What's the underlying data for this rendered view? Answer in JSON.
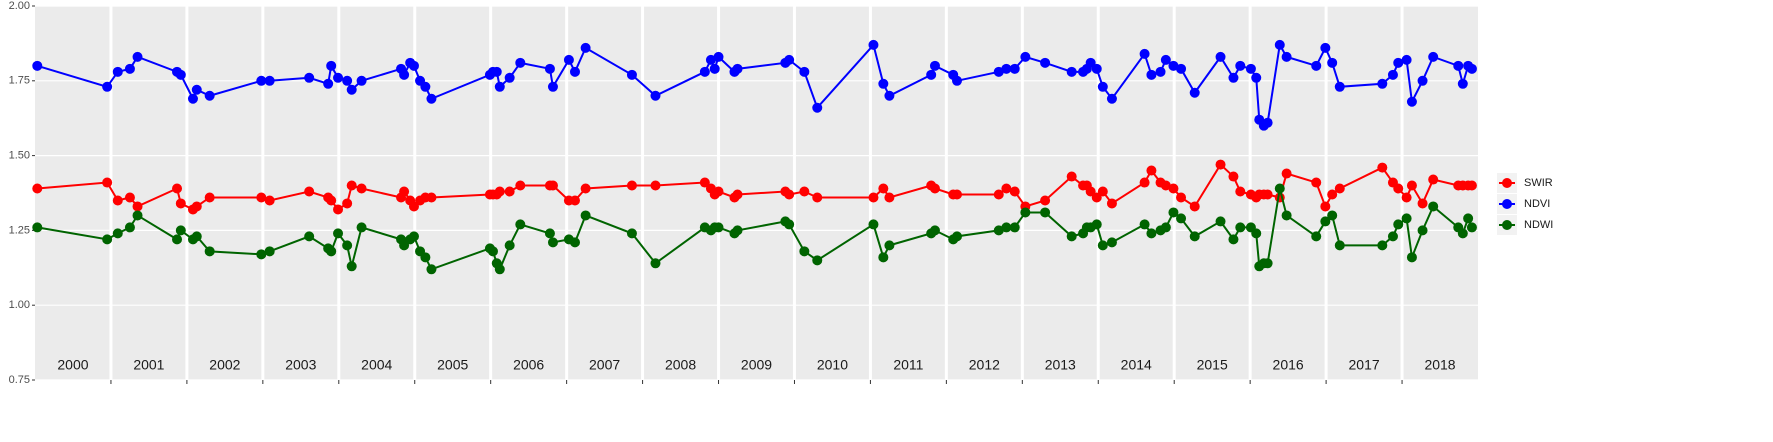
{
  "chart_data": {
    "type": "line",
    "x": [
      2000.03,
      2000.95,
      2001.09,
      2001.25,
      2001.35,
      2001.87,
      2001.92,
      2002.08,
      2002.13,
      2002.3,
      2002.98,
      2003.09,
      2003.61,
      2003.86,
      2003.9,
      2003.99,
      2004.11,
      2004.17,
      2004.3,
      2004.82,
      2004.86,
      2004.94,
      2004.99,
      2005.07,
      2005.14,
      2005.22,
      2005.99,
      2006.03,
      2006.08,
      2006.12,
      2006.25,
      2006.39,
      2006.78,
      2006.82,
      2007.03,
      2007.11,
      2007.25,
      2007.86,
      2008.17,
      2008.82,
      2008.9,
      2008.95,
      2009.0,
      2009.21,
      2009.25,
      2009.88,
      2009.93,
      2010.13,
      2010.3,
      2011.04,
      2011.17,
      2011.25,
      2011.8,
      2011.85,
      2012.09,
      2012.14,
      2012.69,
      2012.79,
      2012.9,
      2013.04,
      2013.3,
      2013.65,
      2013.8,
      2013.85,
      2013.9,
      2013.98,
      2014.06,
      2014.18,
      2014.61,
      2014.7,
      2014.82,
      2014.89,
      2014.99,
      2015.09,
      2015.27,
      2015.61,
      2015.78,
      2015.87,
      2016.01,
      2016.08,
      2016.12,
      2016.18,
      2016.23,
      2016.39,
      2016.48,
      2016.87,
      2016.99,
      2017.08,
      2017.18,
      2017.74,
      2017.88,
      2017.95,
      2018.06,
      2018.13,
      2018.27,
      2018.41,
      2018.74,
      2018.8,
      2018.87,
      2018.92
    ],
    "series": [
      {
        "name": "SWIR",
        "color": "#ff0000",
        "values": [
          1.39,
          1.41,
          1.35,
          1.36,
          1.33,
          1.39,
          1.34,
          1.32,
          1.33,
          1.36,
          1.36,
          1.35,
          1.38,
          1.36,
          1.35,
          1.32,
          1.34,
          1.4,
          1.39,
          1.36,
          1.38,
          1.35,
          1.33,
          1.35,
          1.36,
          1.36,
          1.37,
          1.37,
          1.37,
          1.38,
          1.38,
          1.4,
          1.4,
          1.4,
          1.35,
          1.35,
          1.39,
          1.4,
          1.4,
          1.41,
          1.39,
          1.37,
          1.38,
          1.36,
          1.37,
          1.38,
          1.37,
          1.38,
          1.36,
          1.36,
          1.39,
          1.36,
          1.4,
          1.39,
          1.37,
          1.37,
          1.37,
          1.39,
          1.38,
          1.33,
          1.35,
          1.43,
          1.4,
          1.4,
          1.38,
          1.36,
          1.38,
          1.34,
          1.41,
          1.45,
          1.41,
          1.4,
          1.39,
          1.36,
          1.33,
          1.47,
          1.43,
          1.38,
          1.37,
          1.36,
          1.37,
          1.37,
          1.37,
          1.36,
          1.44,
          1.41,
          1.33,
          1.37,
          1.39,
          1.46,
          1.41,
          1.39,
          1.36,
          1.4,
          1.34,
          1.42,
          1.4,
          1.4,
          1.4,
          1.4
        ]
      },
      {
        "name": "NDVI",
        "color": "#0000ff",
        "values": [
          1.8,
          1.73,
          1.78,
          1.79,
          1.83,
          1.78,
          1.77,
          1.69,
          1.72,
          1.7,
          1.75,
          1.75,
          1.76,
          1.74,
          1.8,
          1.76,
          1.75,
          1.72,
          1.75,
          1.79,
          1.77,
          1.81,
          1.8,
          1.75,
          1.73,
          1.69,
          1.77,
          1.78,
          1.78,
          1.73,
          1.76,
          1.81,
          1.79,
          1.73,
          1.82,
          1.78,
          1.86,
          1.77,
          1.7,
          1.78,
          1.82,
          1.79,
          1.83,
          1.78,
          1.79,
          1.81,
          1.82,
          1.78,
          1.66,
          1.87,
          1.74,
          1.7,
          1.77,
          1.8,
          1.77,
          1.75,
          1.78,
          1.79,
          1.79,
          1.83,
          1.81,
          1.78,
          1.78,
          1.79,
          1.81,
          1.79,
          1.73,
          1.69,
          1.84,
          1.77,
          1.78,
          1.82,
          1.8,
          1.79,
          1.71,
          1.83,
          1.76,
          1.8,
          1.79,
          1.76,
          1.62,
          1.6,
          1.61,
          1.87,
          1.83,
          1.8,
          1.86,
          1.81,
          1.73,
          1.74,
          1.77,
          1.81,
          1.82,
          1.68,
          1.75,
          1.83,
          1.8,
          1.74,
          1.8,
          1.79
        ]
      },
      {
        "name": "NDWI",
        "color": "#006400",
        "values": [
          1.26,
          1.22,
          1.24,
          1.26,
          1.3,
          1.22,
          1.25,
          1.22,
          1.23,
          1.18,
          1.17,
          1.18,
          1.23,
          1.19,
          1.18,
          1.24,
          1.2,
          1.13,
          1.26,
          1.22,
          1.2,
          1.22,
          1.23,
          1.18,
          1.16,
          1.12,
          1.19,
          1.18,
          1.14,
          1.12,
          1.2,
          1.27,
          1.24,
          1.21,
          1.22,
          1.21,
          1.3,
          1.24,
          1.14,
          1.26,
          1.25,
          1.26,
          1.26,
          1.24,
          1.25,
          1.28,
          1.27,
          1.18,
          1.15,
          1.27,
          1.16,
          1.2,
          1.24,
          1.25,
          1.22,
          1.23,
          1.25,
          1.26,
          1.26,
          1.31,
          1.31,
          1.23,
          1.24,
          1.26,
          1.26,
          1.27,
          1.2,
          1.21,
          1.27,
          1.24,
          1.25,
          1.26,
          1.31,
          1.29,
          1.23,
          1.28,
          1.22,
          1.26,
          1.26,
          1.24,
          1.13,
          1.14,
          1.14,
          1.39,
          1.3,
          1.23,
          1.28,
          1.3,
          1.2,
          1.2,
          1.23,
          1.27,
          1.29,
          1.16,
          1.25,
          1.33,
          1.26,
          1.24,
          1.29,
          1.26
        ]
      }
    ],
    "xlim": [
      2000,
      2019
    ],
    "xticks": [
      2001,
      2002,
      2003,
      2004,
      2005,
      2006,
      2007,
      2008,
      2009,
      2010,
      2011,
      2012,
      2013,
      2014,
      2015,
      2016,
      2017,
      2018
    ],
    "year_labels": [
      "2000",
      "2001",
      "2002",
      "2003",
      "2004",
      "2005",
      "2006",
      "2007",
      "2008",
      "2009",
      "2010",
      "2011",
      "2012",
      "2013",
      "2014",
      "2015",
      "2016",
      "2017",
      "2018"
    ],
    "ylim": [
      0.75,
      2.0
    ],
    "yticks": [
      0.75,
      {
        "value": 1.0,
        "label": "1.00"
      },
      1.25,
      {
        "value": 1.5,
        "label": "1.50"
      },
      1.75,
      {
        "value": 2.0,
        "label": "2.00"
      }
    ],
    "grid": true,
    "legend": "right"
  }
}
